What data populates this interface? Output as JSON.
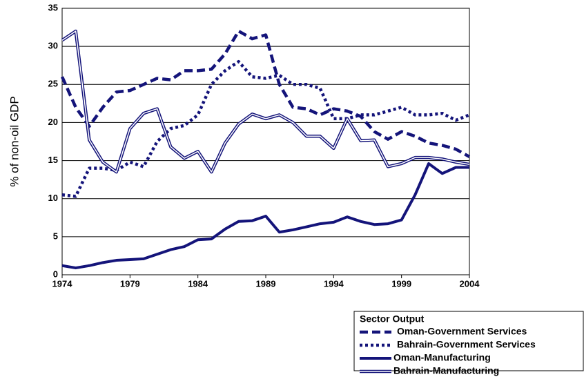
{
  "chart_data": {
    "type": "line",
    "ylabel": "% of non-oil GDP",
    "legend_title": "Sector Output",
    "x": [
      1974,
      1975,
      1976,
      1977,
      1978,
      1979,
      1980,
      1981,
      1982,
      1983,
      1984,
      1985,
      1986,
      1987,
      1988,
      1989,
      1990,
      1991,
      1992,
      1993,
      1994,
      1995,
      1996,
      1997,
      1998,
      1999,
      2000,
      2001,
      2002,
      2003,
      2004
    ],
    "xlim": [
      1974,
      2004
    ],
    "xticks": [
      1974,
      1979,
      1984,
      1989,
      1994,
      1999,
      2004
    ],
    "ylim": [
      0,
      35
    ],
    "yticks": [
      0,
      5,
      10,
      15,
      20,
      25,
      30,
      35
    ],
    "grid": true,
    "series": [
      {
        "name": "Oman-Government Services",
        "color": "#14147a",
        "style": "dashed",
        "values": [
          26,
          22,
          19.5,
          22,
          24,
          24.2,
          25,
          25.8,
          25.6,
          26.8,
          26.8,
          27,
          29,
          32,
          31,
          31.5,
          25,
          22,
          21.8,
          21,
          21.8,
          21.5,
          20.8,
          18.8,
          17.8,
          18.8,
          18.2,
          17.3,
          17,
          16.5,
          15.5
        ]
      },
      {
        "name": "Bahrain-Government Services",
        "color": "#14147a",
        "style": "dotted",
        "values": [
          10.5,
          10.3,
          14,
          14,
          13.7,
          14.8,
          14.2,
          17.5,
          19.2,
          19.6,
          21,
          25,
          26.8,
          28,
          26,
          25.8,
          26.2,
          25,
          25,
          24.5,
          20.5,
          20.5,
          21,
          21,
          21.5,
          22,
          21,
          21,
          21.2,
          20.3,
          21
        ]
      },
      {
        "name": "Oman-Manufacturing",
        "color": "#14147a",
        "style": "solid",
        "values": [
          1.2,
          0.9,
          1.2,
          1.6,
          1.9,
          2.0,
          2.1,
          2.7,
          3.3,
          3.7,
          4.6,
          4.7,
          6.0,
          7.0,
          7.1,
          7.7,
          5.6,
          5.9,
          6.3,
          6.7,
          6.9,
          7.6,
          7.0,
          6.6,
          6.7,
          7.2,
          10.5,
          14.6,
          13.3,
          14.1,
          14.1
        ]
      },
      {
        "name": "Bahrain-Manufacturing",
        "color": "#14147a",
        "style": "double",
        "values": [
          30.8,
          32,
          17.7,
          14.8,
          13.5,
          19.2,
          21.2,
          21.8,
          16.8,
          15.3,
          16.2,
          13.5,
          17.3,
          19.8,
          21.1,
          20.5,
          21,
          20,
          18.2,
          18.2,
          16.6,
          20.5,
          17.6,
          17.7,
          14.2,
          14.6,
          15.4,
          15.4,
          15.2,
          14.8,
          14.5
        ]
      }
    ]
  }
}
